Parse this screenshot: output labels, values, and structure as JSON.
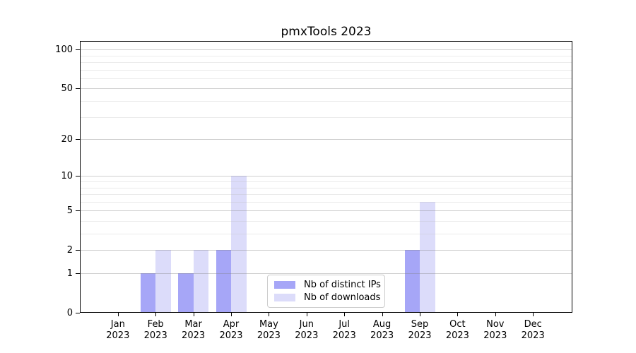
{
  "title": "pmxTools 2023",
  "colors": {
    "distinct_ips": "#a6a6f7",
    "downloads": "#dcdcfa",
    "grid_major": "#cfcfcf",
    "grid_minor": "#ebebeb",
    "axis": "#000000",
    "legend_border": "#cccccc",
    "background": "#ffffff"
  },
  "legend": {
    "items": [
      {
        "label": "Nb of distinct IPs",
        "color_key": "distinct_ips"
      },
      {
        "label": "Nb of downloads",
        "color_key": "downloads"
      }
    ]
  },
  "chart_data": {
    "type": "bar",
    "title": "pmxTools 2023",
    "categories": [
      "Jan 2023",
      "Feb 2023",
      "Mar 2023",
      "Apr 2023",
      "May 2023",
      "Jun 2023",
      "Jul 2023",
      "Aug 2023",
      "Sep 2023",
      "Oct 2023",
      "Nov 2023",
      "Dec 2023"
    ],
    "xtick_months": [
      "Jan",
      "Feb",
      "Mar",
      "Apr",
      "May",
      "Jun",
      "Jul",
      "Aug",
      "Sep",
      "Oct",
      "Nov",
      "Dec"
    ],
    "xtick_year": "2023",
    "series": [
      {
        "name": "Nb of distinct IPs",
        "color": "#a6a6f7",
        "values": [
          0,
          1,
          1,
          2,
          0,
          0,
          0,
          0,
          2,
          0,
          0,
          0
        ]
      },
      {
        "name": "Nb of downloads",
        "color": "#dcdcfa",
        "values": [
          0,
          2,
          2,
          10,
          0,
          0,
          0,
          0,
          6,
          0,
          0,
          0
        ]
      }
    ],
    "xlabel": "",
    "ylabel": "",
    "yscale": "log1p",
    "yticks": [
      0,
      1,
      2,
      5,
      10,
      20,
      50,
      100
    ],
    "yticks_minor": [
      3,
      4,
      6,
      7,
      8,
      9,
      30,
      40,
      60,
      70,
      80,
      90
    ],
    "ylim": [
      0,
      115
    ],
    "grid": true,
    "legend_position": "lower center"
  }
}
